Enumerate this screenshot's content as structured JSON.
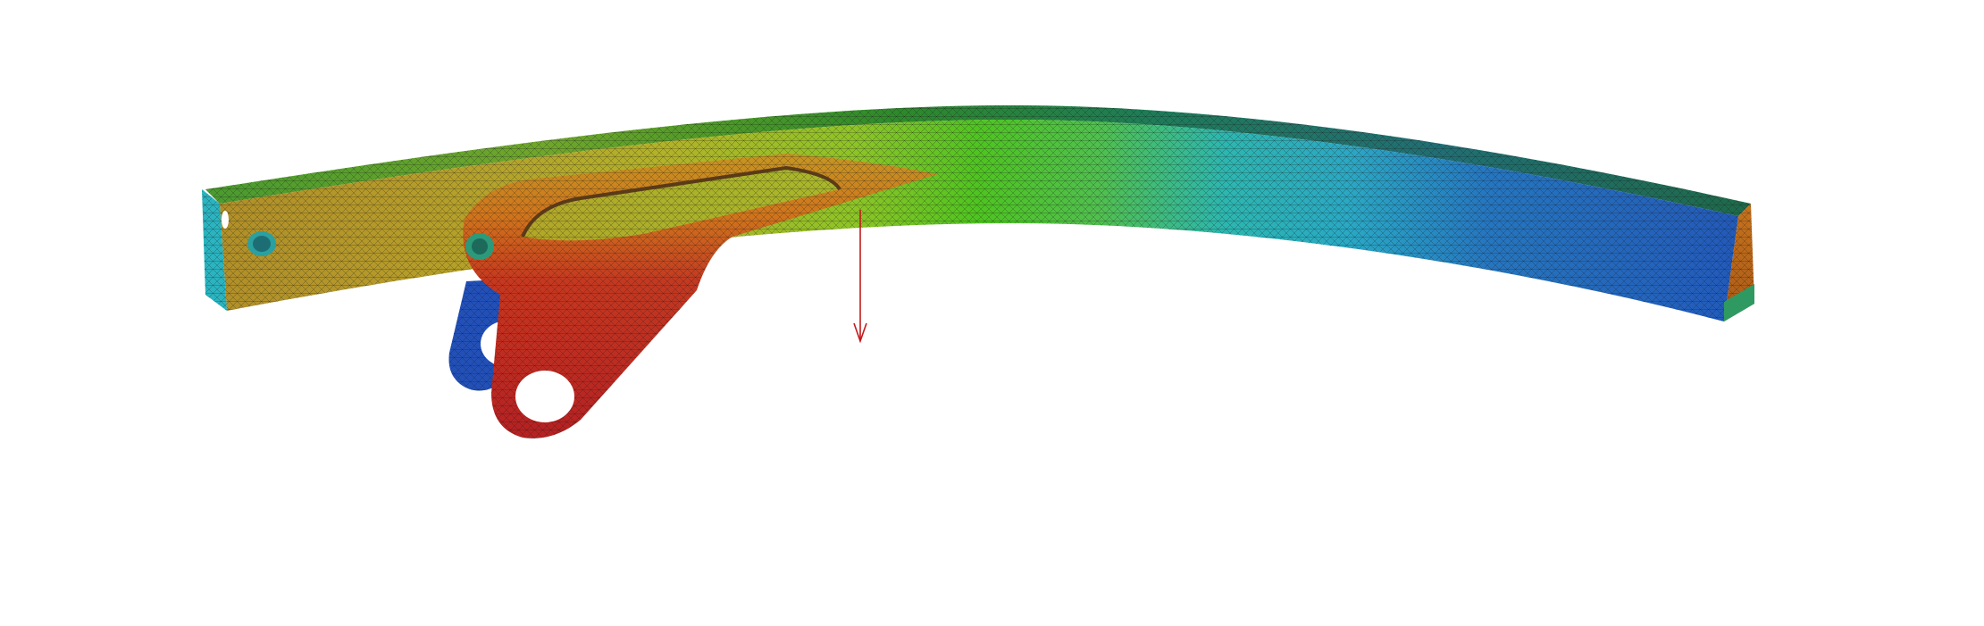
{
  "scene": {
    "description_visible_text": "",
    "background_color": "#ffffff",
    "colormap": [
      "#c42020",
      "#d05a18",
      "#c9a81c",
      "#5cc420",
      "#2bb7c4",
      "#1f5fc0"
    ],
    "mesh_line_color": "#1a1a1a",
    "load_arrow_color": "#c41a1a",
    "hole_fill_color": "#ffffff"
  }
}
